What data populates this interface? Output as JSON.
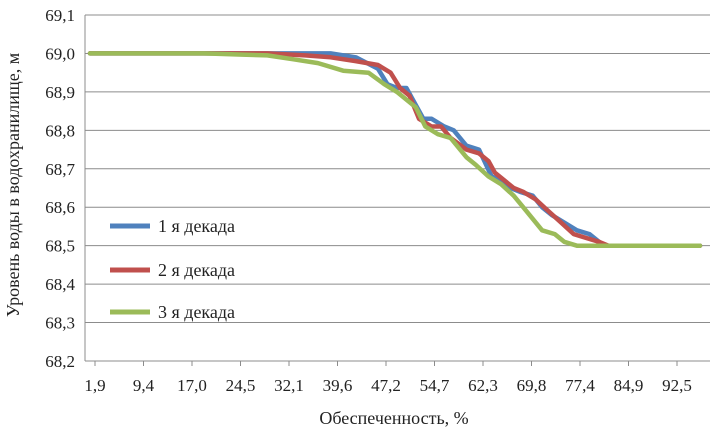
{
  "chart_data": {
    "type": "line",
    "xlabel": "Обеспеченность, %",
    "ylabel": "Уровень воды в водохранилище, м",
    "ylim": [
      68.2,
      69.1
    ],
    "yticks": [
      "68,2",
      "68,3",
      "68,4",
      "68,5",
      "68,6",
      "68,7",
      "68,8",
      "68,9",
      "69,0",
      "69,1"
    ],
    "xlim": [
      1.9,
      98.5
    ],
    "xticks": [
      "1,9",
      "9,4",
      "17,0",
      "24,5",
      "32,1",
      "39,6",
      "47,2",
      "54,7",
      "62,3",
      "69,8",
      "77,4",
      "84,9",
      "92,5"
    ],
    "grid": "horizontal",
    "legend_position": "left-bottom",
    "series": [
      {
        "name": "1 я декада",
        "color": "#4f81bd",
        "x": [
          1.9,
          20,
          30,
          40,
          44,
          47.5,
          49,
          50.5,
          52,
          54.7,
          56,
          58,
          59.5,
          61.5,
          63.5,
          65.5,
          67,
          68.5,
          70,
          72,
          73.5,
          75,
          77,
          79,
          81,
          82.5,
          83.5,
          86,
          90,
          98.5
        ],
        "values": [
          69.0,
          69.0,
          69.0,
          69.0,
          68.99,
          68.96,
          68.92,
          68.91,
          68.91,
          68.83,
          68.83,
          68.81,
          68.8,
          68.76,
          68.75,
          68.68,
          68.67,
          68.65,
          68.64,
          68.63,
          68.6,
          68.58,
          68.56,
          68.54,
          68.53,
          68.51,
          68.5,
          68.5,
          68.5,
          68.5
        ]
      },
      {
        "name": "2 я декада",
        "color": "#c0504d",
        "x": [
          1.9,
          20,
          30,
          36,
          40,
          44,
          47.5,
          49.5,
          51,
          52.5,
          54,
          56,
          57.5,
          59,
          61.5,
          63.5,
          65,
          66,
          67.5,
          69,
          70.5,
          72.5,
          74.5,
          76.5,
          78.5,
          80.5,
          82.5,
          84,
          90,
          98.5
        ],
        "values": [
          69.0,
          69.0,
          69.0,
          68.995,
          68.99,
          68.98,
          68.97,
          68.95,
          68.91,
          68.89,
          68.83,
          68.81,
          68.81,
          68.78,
          68.75,
          68.74,
          68.72,
          68.69,
          68.67,
          68.65,
          68.64,
          68.62,
          68.59,
          68.56,
          68.53,
          68.52,
          68.51,
          68.5,
          68.5,
          68.5
        ]
      },
      {
        "name": "3 я декада",
        "color": "#9bbb59",
        "x": [
          1.9,
          20,
          26,
          30,
          34,
          38,
          42,
          46,
          48.5,
          50.5,
          52,
          53.5,
          55,
          57,
          59,
          61.5,
          63,
          65,
          67,
          69,
          70.5,
          72,
          73.5,
          75.5,
          77,
          79,
          82,
          86,
          90,
          98.5
        ],
        "values": [
          69.0,
          69.0,
          68.997,
          68.995,
          68.985,
          68.975,
          68.955,
          68.95,
          68.92,
          68.9,
          68.88,
          68.86,
          68.81,
          68.79,
          68.78,
          68.73,
          68.71,
          68.68,
          68.66,
          68.63,
          68.6,
          68.57,
          68.54,
          68.53,
          68.51,
          68.5,
          68.5,
          68.5,
          68.5,
          68.5
        ]
      }
    ]
  }
}
